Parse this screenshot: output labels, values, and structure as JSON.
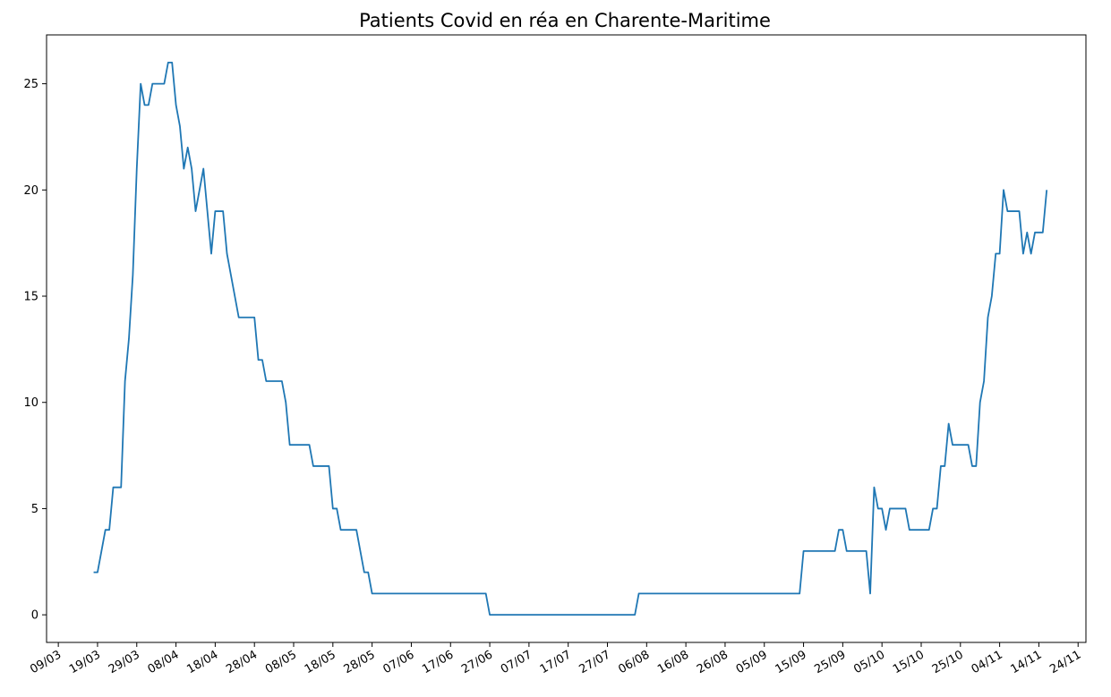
{
  "chart_data": {
    "type": "line",
    "title": "Patients Covid en réa en Charente-Maritime",
    "xlabel": "",
    "ylabel": "",
    "xlim": [
      "2020-03-06",
      "2020-11-26"
    ],
    "ylim": [
      -1.3,
      27.3
    ],
    "yticks": [
      0,
      5,
      10,
      15,
      20,
      25
    ],
    "xticks": [
      {
        "date": "2020-03-09",
        "label": "09/03"
      },
      {
        "date": "2020-03-19",
        "label": "19/03"
      },
      {
        "date": "2020-03-29",
        "label": "29/03"
      },
      {
        "date": "2020-04-08",
        "label": "08/04"
      },
      {
        "date": "2020-04-18",
        "label": "18/04"
      },
      {
        "date": "2020-04-28",
        "label": "28/04"
      },
      {
        "date": "2020-05-08",
        "label": "08/05"
      },
      {
        "date": "2020-05-18",
        "label": "18/05"
      },
      {
        "date": "2020-05-28",
        "label": "28/05"
      },
      {
        "date": "2020-06-07",
        "label": "07/06"
      },
      {
        "date": "2020-06-17",
        "label": "17/06"
      },
      {
        "date": "2020-06-27",
        "label": "27/06"
      },
      {
        "date": "2020-07-07",
        "label": "07/07"
      },
      {
        "date": "2020-07-17",
        "label": "17/07"
      },
      {
        "date": "2020-07-27",
        "label": "27/07"
      },
      {
        "date": "2020-08-06",
        "label": "06/08"
      },
      {
        "date": "2020-08-16",
        "label": "16/08"
      },
      {
        "date": "2020-08-26",
        "label": "26/08"
      },
      {
        "date": "2020-09-05",
        "label": "05/09"
      },
      {
        "date": "2020-09-15",
        "label": "15/09"
      },
      {
        "date": "2020-09-25",
        "label": "25/09"
      },
      {
        "date": "2020-10-05",
        "label": "05/10"
      },
      {
        "date": "2020-10-15",
        "label": "15/10"
      },
      {
        "date": "2020-10-25",
        "label": "25/10"
      },
      {
        "date": "2020-11-04",
        "label": "04/11"
      },
      {
        "date": "2020-11-14",
        "label": "14/11"
      },
      {
        "date": "2020-11-24",
        "label": "24/11"
      }
    ],
    "grid": false,
    "legend": "none",
    "color": "#1f77b4",
    "series": [
      {
        "points": [
          [
            "2020-03-18",
            2
          ],
          [
            "2020-03-19",
            2
          ],
          [
            "2020-03-20",
            3
          ],
          [
            "2020-03-21",
            4
          ],
          [
            "2020-03-22",
            4
          ],
          [
            "2020-03-23",
            6
          ],
          [
            "2020-03-24",
            6
          ],
          [
            "2020-03-25",
            6
          ],
          [
            "2020-03-26",
            11
          ],
          [
            "2020-03-27",
            13
          ],
          [
            "2020-03-28",
            16
          ],
          [
            "2020-03-29",
            21
          ],
          [
            "2020-03-30",
            25
          ],
          [
            "2020-03-31",
            24
          ],
          [
            "2020-04-01",
            24
          ],
          [
            "2020-04-02",
            25
          ],
          [
            "2020-04-03",
            25
          ],
          [
            "2020-04-04",
            25
          ],
          [
            "2020-04-05",
            25
          ],
          [
            "2020-04-06",
            26
          ],
          [
            "2020-04-07",
            26
          ],
          [
            "2020-04-08",
            24
          ],
          [
            "2020-04-09",
            23
          ],
          [
            "2020-04-10",
            21
          ],
          [
            "2020-04-11",
            22
          ],
          [
            "2020-04-12",
            21
          ],
          [
            "2020-04-13",
            19
          ],
          [
            "2020-04-14",
            20
          ],
          [
            "2020-04-15",
            21
          ],
          [
            "2020-04-16",
            19
          ],
          [
            "2020-04-17",
            17
          ],
          [
            "2020-04-18",
            19
          ],
          [
            "2020-04-19",
            19
          ],
          [
            "2020-04-20",
            19
          ],
          [
            "2020-04-21",
            17
          ],
          [
            "2020-04-22",
            16
          ],
          [
            "2020-04-23",
            15
          ],
          [
            "2020-04-24",
            14
          ],
          [
            "2020-04-25",
            14
          ],
          [
            "2020-04-26",
            14
          ],
          [
            "2020-04-27",
            14
          ],
          [
            "2020-04-28",
            14
          ],
          [
            "2020-04-29",
            12
          ],
          [
            "2020-04-30",
            12
          ],
          [
            "2020-05-01",
            11
          ],
          [
            "2020-05-02",
            11
          ],
          [
            "2020-05-03",
            11
          ],
          [
            "2020-05-04",
            11
          ],
          [
            "2020-05-05",
            11
          ],
          [
            "2020-05-06",
            10
          ],
          [
            "2020-05-07",
            8
          ],
          [
            "2020-05-08",
            8
          ],
          [
            "2020-05-09",
            8
          ],
          [
            "2020-05-10",
            8
          ],
          [
            "2020-05-11",
            8
          ],
          [
            "2020-05-12",
            8
          ],
          [
            "2020-05-13",
            7
          ],
          [
            "2020-05-14",
            7
          ],
          [
            "2020-05-15",
            7
          ],
          [
            "2020-05-16",
            7
          ],
          [
            "2020-05-17",
            7
          ],
          [
            "2020-05-18",
            5
          ],
          [
            "2020-05-19",
            5
          ],
          [
            "2020-05-20",
            4
          ],
          [
            "2020-05-21",
            4
          ],
          [
            "2020-05-22",
            4
          ],
          [
            "2020-05-23",
            4
          ],
          [
            "2020-05-24",
            4
          ],
          [
            "2020-05-25",
            3
          ],
          [
            "2020-05-26",
            2
          ],
          [
            "2020-05-27",
            2
          ],
          [
            "2020-05-28",
            1
          ],
          [
            "2020-06-26",
            1
          ],
          [
            "2020-06-27",
            0
          ],
          [
            "2020-08-03",
            0
          ],
          [
            "2020-08-04",
            1
          ],
          [
            "2020-09-14",
            1
          ],
          [
            "2020-09-15",
            3
          ],
          [
            "2020-09-23",
            3
          ],
          [
            "2020-09-24",
            4
          ],
          [
            "2020-09-25",
            4
          ],
          [
            "2020-09-26",
            3
          ],
          [
            "2020-09-30",
            3
          ],
          [
            "2020-10-01",
            3
          ],
          [
            "2020-10-02",
            1
          ],
          [
            "2020-10-03",
            6
          ],
          [
            "2020-10-04",
            5
          ],
          [
            "2020-10-05",
            5
          ],
          [
            "2020-10-06",
            4
          ],
          [
            "2020-10-07",
            5
          ],
          [
            "2020-10-08",
            5
          ],
          [
            "2020-10-09",
            5
          ],
          [
            "2020-10-10",
            5
          ],
          [
            "2020-10-11",
            5
          ],
          [
            "2020-10-12",
            4
          ],
          [
            "2020-10-13",
            4
          ],
          [
            "2020-10-14",
            4
          ],
          [
            "2020-10-15",
            4
          ],
          [
            "2020-10-16",
            4
          ],
          [
            "2020-10-17",
            4
          ],
          [
            "2020-10-18",
            5
          ],
          [
            "2020-10-19",
            5
          ],
          [
            "2020-10-20",
            7
          ],
          [
            "2020-10-21",
            7
          ],
          [
            "2020-10-22",
            9
          ],
          [
            "2020-10-23",
            8
          ],
          [
            "2020-10-24",
            8
          ],
          [
            "2020-10-25",
            8
          ],
          [
            "2020-10-26",
            8
          ],
          [
            "2020-10-27",
            8
          ],
          [
            "2020-10-28",
            7
          ],
          [
            "2020-10-29",
            7
          ],
          [
            "2020-10-30",
            10
          ],
          [
            "2020-10-31",
            11
          ],
          [
            "2020-11-01",
            14
          ],
          [
            "2020-11-02",
            15
          ],
          [
            "2020-11-03",
            17
          ],
          [
            "2020-11-04",
            17
          ],
          [
            "2020-11-05",
            20
          ],
          [
            "2020-11-06",
            19
          ],
          [
            "2020-11-07",
            19
          ],
          [
            "2020-11-08",
            19
          ],
          [
            "2020-11-09",
            19
          ],
          [
            "2020-11-10",
            17
          ],
          [
            "2020-11-11",
            18
          ],
          [
            "2020-11-12",
            17
          ],
          [
            "2020-11-13",
            18
          ],
          [
            "2020-11-14",
            18
          ],
          [
            "2020-11-15",
            18
          ],
          [
            "2020-11-16",
            20
          ]
        ]
      }
    ]
  }
}
